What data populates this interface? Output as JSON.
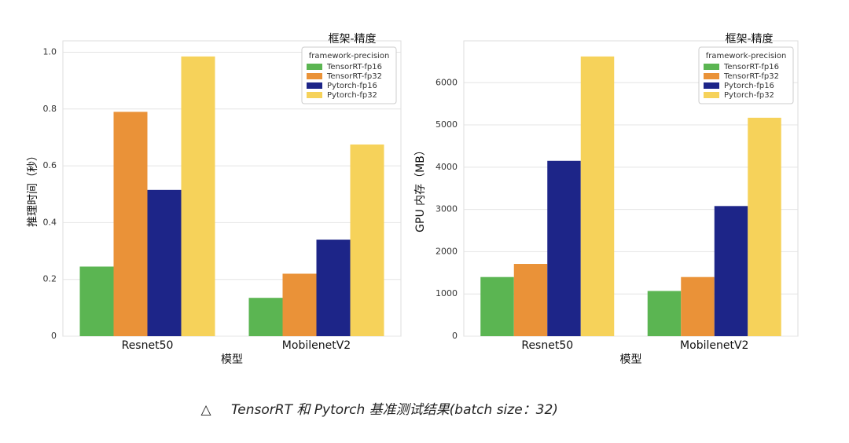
{
  "chart_data": [
    {
      "type": "bar",
      "y_label": "推理时间（秒）",
      "x_label": "模型",
      "legend_title": "框架-精度",
      "legend_subtitle": "framework-precision",
      "categories": [
        "Resnet50",
        "MobilenetV2"
      ],
      "series": [
        {
          "name": "TensorRT-fp16",
          "color": "#5bb552",
          "values": [
            0.245,
            0.135
          ]
        },
        {
          "name": "TensorRT-fp32",
          "color": "#ea9238",
          "values": [
            0.79,
            0.22
          ]
        },
        {
          "name": "Pytorch-fp16",
          "color": "#1d2588",
          "values": [
            0.515,
            0.34
          ]
        },
        {
          "name": "Pytorch-fp32",
          "color": "#f6d25a",
          "values": [
            0.985,
            0.675
          ]
        }
      ],
      "ylim": [
        0,
        1.04
      ],
      "yticks": [
        0,
        0.2,
        0.4,
        0.6,
        0.8,
        {
          "value": 1,
          "label": "1.0"
        }
      ],
      "grid": true
    },
    {
      "type": "bar",
      "y_label": "GPU 内存（MB）",
      "x_label": "模型",
      "legend_title": "框架-精度",
      "legend_subtitle": "framework-precision",
      "categories": [
        "Resnet50",
        "MobilenetV2"
      ],
      "series": [
        {
          "name": "TensorRT-fp16",
          "color": "#5bb552",
          "values": [
            1400,
            1070
          ]
        },
        {
          "name": "TensorRT-fp32",
          "color": "#ea9238",
          "values": [
            1710,
            1400
          ]
        },
        {
          "name": "Pytorch-fp16",
          "color": "#1d2588",
          "values": [
            4150,
            3080
          ]
        },
        {
          "name": "Pytorch-fp32",
          "color": "#f6d25a",
          "values": [
            6620,
            5170
          ]
        }
      ],
      "ylim": [
        0,
        6990
      ],
      "yticks": [
        0,
        1000,
        2000,
        3000,
        4000,
        5000,
        6000
      ],
      "grid": true
    }
  ],
  "caption": {
    "marker": "△",
    "text": "TensorRT 和 Pytorch 基准测试结果(batch size：32)"
  }
}
